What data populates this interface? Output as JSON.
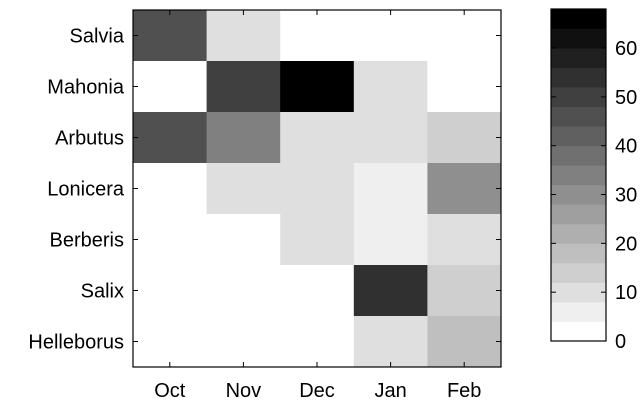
{
  "chart_data": {
    "type": "heatmap",
    "x_categories": [
      "Oct",
      "Nov",
      "Dec",
      "Jan",
      "Feb"
    ],
    "y_categories": [
      "Salvia",
      "Mahonia",
      "Arbutus",
      "Lonicera",
      "Berberis",
      "Salix",
      "Helleborus"
    ],
    "values": [
      [
        45,
        8,
        0,
        0,
        0
      ],
      [
        0,
        50,
        68,
        8,
        0
      ],
      [
        45,
        35,
        11,
        8,
        12
      ],
      [
        0,
        8,
        11,
        4,
        30
      ],
      [
        0,
        0,
        11,
        4,
        11
      ],
      [
        0,
        0,
        0,
        52,
        13
      ],
      [
        0,
        0,
        0,
        8,
        16
      ]
    ],
    "colorbar": {
      "range": [
        0,
        68
      ],
      "ticks": [
        0,
        10,
        20,
        30,
        40,
        50,
        60
      ],
      "levels": 17,
      "colormap": "gray-reversed",
      "low_color": "#ffffff",
      "high_color": "#000000"
    },
    "title": "",
    "xlabel": "",
    "ylabel": "",
    "grid": false
  }
}
